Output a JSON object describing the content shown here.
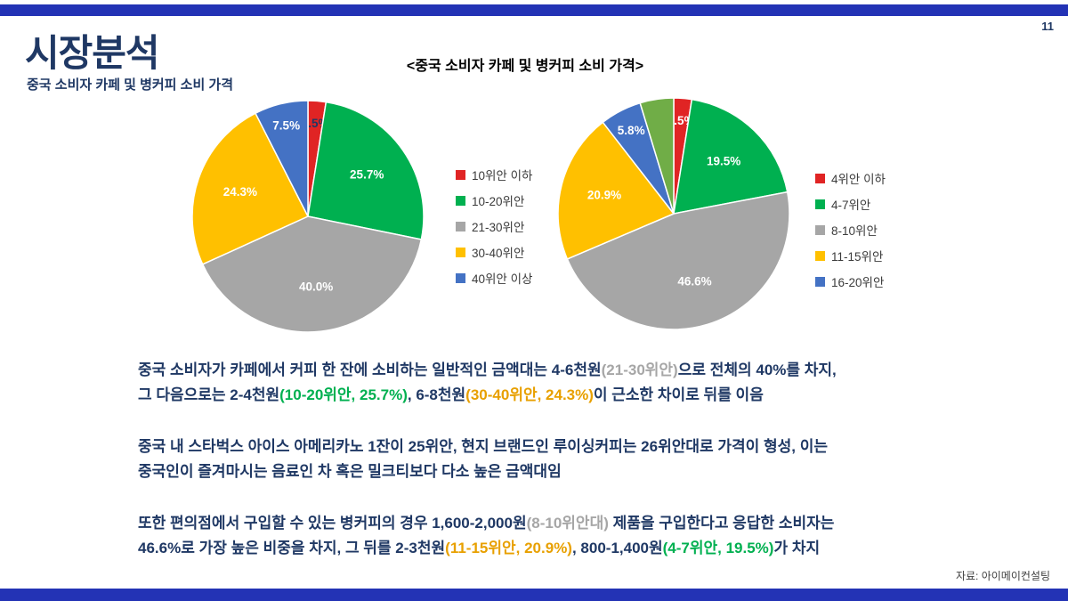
{
  "page": {
    "number": "11",
    "source": "자료: 아이메이컨설팅"
  },
  "header": {
    "title": "시장분석",
    "subtitle": "중국 소비자 카페 및 병커피 소비 가격"
  },
  "chart_heading": "<중국 소비자 카페 및 병커피 소비 가격>",
  "colors": {
    "accent_bar": "#2333B5",
    "navy_text": "#1F3864",
    "red": "#E02424",
    "green": "#00B050",
    "gray": "#A6A6A6",
    "yellow": "#FFC000",
    "blue": "#4472C4",
    "light_green": "#70AD47"
  },
  "chart_data": [
    {
      "type": "pie",
      "name": "cafe-coffee-price",
      "title": "<중국 소비자 카페 및 병커피 소비 가격>",
      "legend_position": "right",
      "slices": [
        {
          "label": "10위안 이하",
          "value": 2.5,
          "color": "#E02424",
          "label_color": "#1F3864"
        },
        {
          "label": "10-20위안",
          "value": 25.7,
          "color": "#00B050",
          "label_color": "#FFFFFF"
        },
        {
          "label": "21-30위안",
          "value": 40.0,
          "color": "#A6A6A6",
          "label_color": "#FFFFFF"
        },
        {
          "label": "30-40위안",
          "value": 24.3,
          "color": "#FFC000",
          "label_color": "#FFFFFF"
        },
        {
          "label": "40위안 이상",
          "value": 7.5,
          "color": "#4472C4",
          "label_color": "#FFFFFF"
        }
      ]
    },
    {
      "type": "pie",
      "name": "bottled-coffee-price",
      "title": "<중국 소비자 카페 및 병커피 소비 가격>",
      "legend_position": "right",
      "slices": [
        {
          "label": "4위안 이하",
          "value": 2.5,
          "color": "#E02424",
          "label_color": "#FFFFFF"
        },
        {
          "label": "4-7위안",
          "value": 19.5,
          "color": "#00B050",
          "label_color": "#FFFFFF"
        },
        {
          "label": "8-10위안",
          "value": 46.6,
          "color": "#A6A6A6",
          "label_color": "#FFFFFF"
        },
        {
          "label": "11-15위안",
          "value": 20.9,
          "color": "#FFC000",
          "label_color": "#FFFFFF"
        },
        {
          "label": "16-20위안",
          "value": 5.8,
          "color": "#4472C4",
          "label_color": "#FFFFFF"
        },
        {
          "label": "",
          "value": 4.7,
          "color": "#70AD47",
          "show_label": false,
          "in_legend": false
        }
      ]
    }
  ],
  "body": {
    "paragraphs": [
      [
        {
          "t": "중국 소비자가 카페에서 커피 한 잔에 소비하는 일반적인 금액대는 4-6천원"
        },
        {
          "t": "(21-30위안)",
          "c": "#A6A6A6"
        },
        {
          "t": "으로 전체의 40%를 차지,"
        },
        {
          "br": true
        },
        {
          "t": "그 다음으로는 2-4천원"
        },
        {
          "t": "(10-20위안, 25.7%)",
          "c": "#00B050"
        },
        {
          "t": ", 6-8천원"
        },
        {
          "t": "(30-40위안, 24.3%)",
          "c": "#E8A000"
        },
        {
          "t": "이 근소한 차이로 뒤를 이음"
        }
      ],
      [
        {
          "t": " 중국 내 스타벅스 아이스 아메리카노 1잔이 25위안, 현지 브랜드인 루이싱커피는 26위안대로 가격이 형성, 이는"
        },
        {
          "br": true
        },
        {
          "t": "중국인이 즐겨마시는 음료인 차 혹은 밀크티보다 다소 높은 금액대임"
        }
      ],
      [
        {
          "t": " 또한 편의점에서 구입할 수 있는 병커피의 경우 1,600-2,000원"
        },
        {
          "t": "(8-10위안대)",
          "c": "#A6A6A6"
        },
        {
          "t": " 제품을 구입한다고 응답한 소비자는"
        },
        {
          "br": true
        },
        {
          "t": "46.6%로 가장 높은 비중을 차지, 그 뒤를 2-3천원"
        },
        {
          "t": "(11-15위안, 20.9%)",
          "c": "#E8A000"
        },
        {
          "t": ", 800-1,400원"
        },
        {
          "t": "(4-7위안, 19.5%)",
          "c": "#00B050"
        },
        {
          "t": "가 차지"
        }
      ]
    ]
  }
}
